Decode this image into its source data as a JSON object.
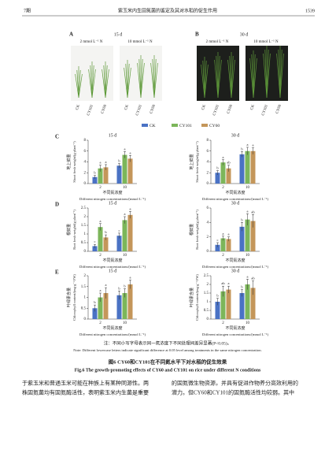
{
  "header": {
    "issue": "7期",
    "running_title": "紫玉米内生固氮菌的鉴定及其对水稻的促生作用",
    "page": "1539"
  },
  "photos": [
    {
      "letter": "A",
      "time": "15 d",
      "groups": [
        {
          "label": "2 mmol L⁻¹ N",
          "plants": [
            "CK",
            "CY101",
            "CY60"
          ]
        },
        {
          "label": "10 mmol L⁻¹ N",
          "plants": [
            "CK",
            "CY101",
            "CY60"
          ]
        }
      ]
    },
    {
      "letter": "B",
      "time": "30 d",
      "groups": [
        {
          "label": "2 mmol L⁻¹ N",
          "plants": [
            "CK",
            "CY101",
            "CY60"
          ]
        },
        {
          "label": "10 mmol L⁻¹ N",
          "plants": [
            "CK",
            "CY101",
            "CY60"
          ]
        }
      ]
    }
  ],
  "legend": [
    {
      "name": "CK",
      "color": "#4a72c4"
    },
    {
      "name": "CY101",
      "color": "#7cb65a"
    },
    {
      "name": "CY60",
      "color": "#c4965a"
    }
  ],
  "charts": [
    {
      "type": "bar",
      "panel": "C",
      "time": "15 d",
      "ylabel_cn": "地上鲜重",
      "ylabel_en": "Shoot fresh weight/(g·plant⁻¹)",
      "xlabel_cn": "不同氮浓度",
      "xlabel_en": "Different nitrogen concentrations/(mmol L⁻¹)",
      "categories": [
        "2",
        "10"
      ],
      "ylim": [
        0,
        8
      ],
      "yticks": [
        0,
        2,
        4,
        6,
        8
      ],
      "series": [
        {
          "values": [
            1.2,
            3.3
          ],
          "errors": [
            0.3,
            0.4
          ],
          "letters": [
            "b",
            "b"
          ]
        },
        {
          "values": [
            2.8,
            5.3
          ],
          "errors": [
            0.6,
            0.6
          ],
          "letters": [
            "a",
            "a"
          ]
        },
        {
          "values": [
            3.0,
            4.6
          ],
          "errors": [
            0.5,
            0.6
          ],
          "letters": [
            "a",
            "a"
          ]
        }
      ]
    },
    {
      "type": "bar",
      "time": "30 d",
      "ylabel_cn": "地上鲜重",
      "ylabel_en": "Shoot fresh weight/(g·plant⁻¹)",
      "xlabel_cn": "不同氮浓度",
      "xlabel_en": "Different nitrogen concentrations/(mmol L⁻¹)",
      "categories": [
        "2",
        "10"
      ],
      "ylim": [
        0,
        8
      ],
      "yticks": [
        0,
        2,
        4,
        6,
        8
      ],
      "series": [
        {
          "values": [
            2.0,
            5.4
          ],
          "errors": [
            0.4,
            0.5
          ],
          "letters": [
            "b",
            "b"
          ]
        },
        {
          "values": [
            3.9,
            6.0
          ],
          "errors": [
            0.5,
            0.7
          ],
          "letters": [
            "a",
            "a"
          ]
        },
        {
          "values": [
            2.8,
            6.0
          ],
          "errors": [
            0.6,
            0.6
          ],
          "letters": [
            "ab",
            "a"
          ]
        }
      ]
    },
    {
      "type": "bar",
      "panel": "D",
      "time": "15 d",
      "ylabel_cn": "根鲜重",
      "ylabel_en": "Root fresh weight/(g·plant⁻¹)",
      "xlabel_cn": "不同氮浓度",
      "xlabel_en": "Different nitrogen concentrations/(mmol L⁻¹)",
      "categories": [
        "2",
        "10"
      ],
      "ylim": [
        0,
        2.5
      ],
      "yticks": [
        0,
        0.5,
        1,
        1.5,
        2,
        2.5
      ],
      "series": [
        {
          "values": [
            0.3,
            0.9
          ],
          "errors": [
            0.1,
            0.15
          ],
          "letters": [
            "c",
            "c"
          ]
        },
        {
          "values": [
            1.4,
            1.8
          ],
          "errors": [
            0.2,
            0.2
          ],
          "letters": [
            "a",
            "a"
          ]
        },
        {
          "values": [
            0.8,
            2.1
          ],
          "errors": [
            0.15,
            0.2
          ],
          "letters": [
            "b",
            "a"
          ]
        }
      ]
    },
    {
      "type": "bar",
      "time": "30 d",
      "ylabel_cn": "根鲜重",
      "ylabel_en": "Root fresh weight/(g·plant⁻¹)",
      "xlabel_cn": "不同氮浓度",
      "xlabel_en": "Different nitrogen concentrations/(mmol L⁻¹)",
      "categories": [
        "2",
        "10"
      ],
      "ylim": [
        0,
        6
      ],
      "yticks": [
        0,
        2,
        4,
        6
      ],
      "series": [
        {
          "values": [
            0.9,
            3.4
          ],
          "errors": [
            0.3,
            0.6
          ],
          "letters": [
            "c",
            "b"
          ]
        },
        {
          "values": [
            1.8,
            4.4
          ],
          "errors": [
            0.3,
            0.8
          ],
          "letters": [
            "a",
            "a"
          ]
        },
        {
          "values": [
            1.7,
            4.2
          ],
          "errors": [
            0.3,
            0.9
          ],
          "letters": [
            "a",
            "ab"
          ]
        }
      ]
    },
    {
      "type": "bar",
      "panel": "E",
      "time": "15 d",
      "ylabel_cn": "叶绿素含量",
      "ylabel_en": "Chlorophyll content/(mg·g⁻¹ FW)",
      "xlabel_cn": "不同氮浓度",
      "xlabel_en": "Different nitrogen concentrations/(mmol L⁻¹)",
      "categories": [
        "2",
        "10"
      ],
      "ylim": [
        0,
        2
      ],
      "yticks": [
        0,
        0.5,
        1,
        1.5,
        2
      ],
      "series": [
        {
          "values": [
            0.5,
            1.1
          ],
          "errors": [
            0.15,
            0.2
          ],
          "letters": [
            "b",
            "b"
          ]
        },
        {
          "values": [
            1.0,
            1.2
          ],
          "errors": [
            0.2,
            0.2
          ],
          "letters": [
            "a",
            "b"
          ]
        },
        {
          "values": [
            1.2,
            1.6
          ],
          "errors": [
            0.25,
            0.2
          ],
          "letters": [
            "a",
            "a"
          ]
        }
      ]
    },
    {
      "type": "bar",
      "time": "30 d",
      "ylabel_cn": "叶绿素含量",
      "ylabel_en": "Chlorophyll content/(mg·g⁻¹ FW)",
      "xlabel_cn": "不同氮浓度",
      "xlabel_en": "Different nitrogen concentrations/(mmol L⁻¹)",
      "categories": [
        "2",
        "10"
      ],
      "ylim": [
        0,
        2.5
      ],
      "yticks": [
        0,
        0.5,
        1,
        1.5,
        2,
        2.5
      ],
      "series": [
        {
          "values": [
            1.0,
            1.5
          ],
          "errors": [
            0.2,
            0.2
          ],
          "letters": [
            "b",
            "b"
          ]
        },
        {
          "values": [
            1.6,
            2.0
          ],
          "errors": [
            0.3,
            0.3
          ],
          "letters": [
            "ab",
            "a"
          ]
        },
        {
          "values": [
            1.7,
            1.8
          ],
          "errors": [
            0.2,
            0.4
          ],
          "letters": [
            "a",
            "ab"
          ]
        }
      ]
    }
  ],
  "note_cn": "注：不同小写字母表示同一氮浓度下不同处理间差异显著(P<0.05)。",
  "note_en": "Note: Different lowercase letters indicate significant difference at 0.05 level among treatments in the same nitrogen concentration.",
  "caption_cn": "图6  CY60和CY101在不同氮水平下对水稻的促生效果",
  "caption_en": "Fig.6  The growth-promoting effects of CY60 and CY101 on rice under different N conditions",
  "body_left": [
    "于紫玉米和普通玉米可能在种族上有某种同源性。两",
    "株固氮菌均有固氮酶活性，表明紫玉米内生菌是重要"
  ],
  "body_right": [
    "的固氮微生物资源，并具有促进作物养分高效利用的",
    "潜力。但CY60和CY101的固氮酶活性均较弱。其中"
  ]
}
